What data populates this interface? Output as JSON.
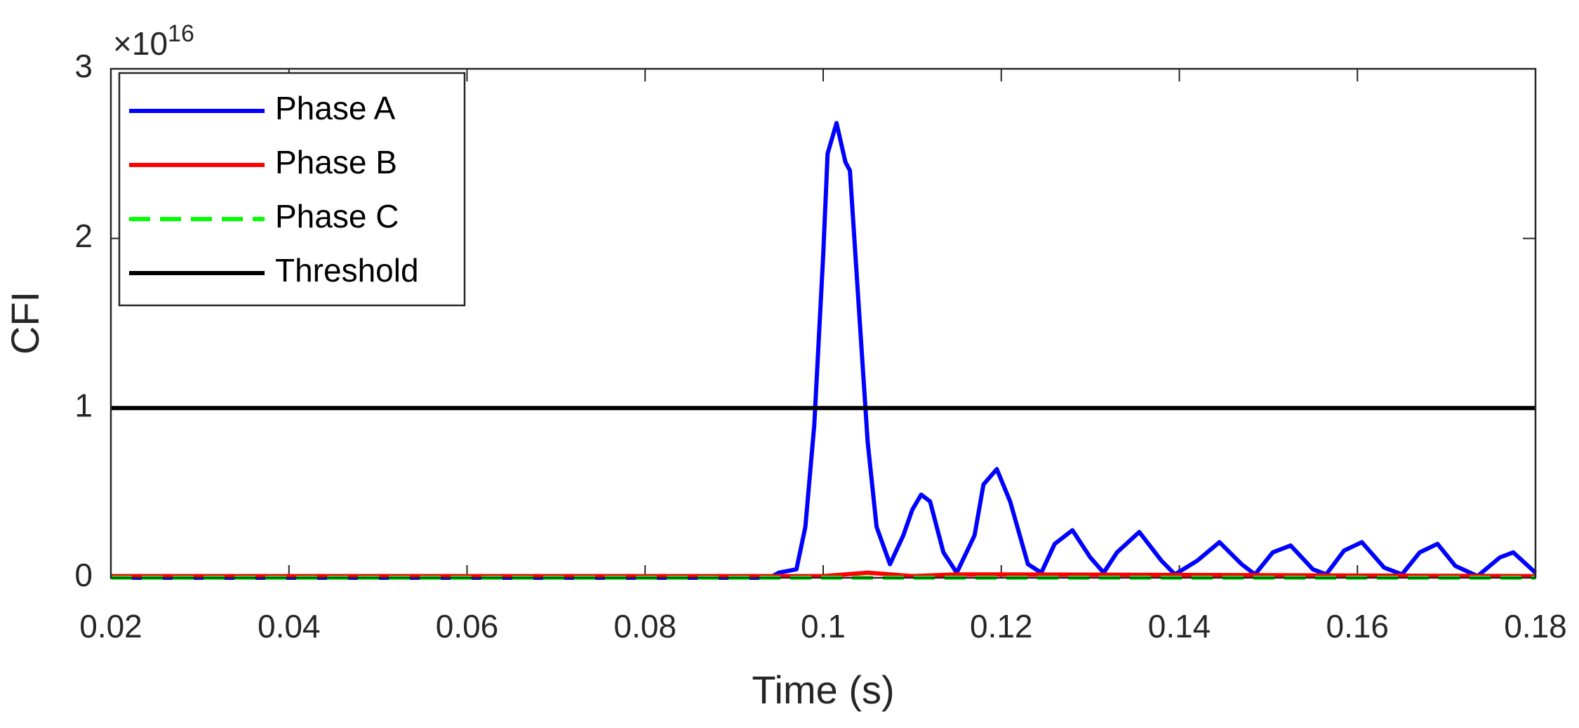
{
  "chart_data": {
    "type": "line",
    "x_label": "Time (s)",
    "y_label": "CFI",
    "y_multiplier": {
      "base": "×10",
      "exponent": "16"
    },
    "xlim": [
      0.02,
      0.18
    ],
    "xticks": [
      0.02,
      0.04,
      0.06,
      0.08,
      0.1,
      0.12,
      0.14,
      0.16,
      0.18
    ],
    "ylim": [
      0,
      3
    ],
    "yticks": [
      0,
      1,
      2,
      3
    ],
    "legend": "upper left",
    "series": [
      {
        "name": "Phase A",
        "color": "#0000ff",
        "style": "solid",
        "x": [
          0.02,
          0.094,
          0.095,
          0.097,
          0.098,
          0.099,
          0.1,
          0.1005,
          0.1015,
          0.1025,
          0.103,
          0.104,
          0.105,
          0.106,
          0.1075,
          0.109,
          0.11,
          0.111,
          0.112,
          0.1135,
          0.115,
          0.117,
          0.118,
          0.1195,
          0.121,
          0.123,
          0.1245,
          0.126,
          0.128,
          0.13,
          0.1315,
          0.133,
          0.1355,
          0.138,
          0.1395,
          0.142,
          0.1445,
          0.147,
          0.1485,
          0.1505,
          0.1525,
          0.155,
          0.1565,
          0.1585,
          0.1605,
          0.163,
          0.165,
          0.167,
          0.169,
          0.171,
          0.1735,
          0.176,
          0.1775,
          0.18
        ],
        "values": [
          0,
          0,
          0.03,
          0.05,
          0.3,
          0.9,
          1.9,
          2.5,
          2.68,
          2.45,
          2.4,
          1.6,
          0.8,
          0.3,
          0.08,
          0.25,
          0.4,
          0.49,
          0.45,
          0.15,
          0.03,
          0.25,
          0.55,
          0.64,
          0.45,
          0.08,
          0.03,
          0.2,
          0.28,
          0.12,
          0.03,
          0.15,
          0.27,
          0.1,
          0.02,
          0.1,
          0.21,
          0.08,
          0.02,
          0.15,
          0.19,
          0.05,
          0.02,
          0.16,
          0.21,
          0.06,
          0.02,
          0.15,
          0.2,
          0.07,
          0.01,
          0.12,
          0.15,
          0.03
        ]
      },
      {
        "name": "Phase B",
        "color": "#ff0000",
        "style": "solid",
        "x": [
          0.02,
          0.1,
          0.105,
          0.11,
          0.115,
          0.12,
          0.18
        ],
        "values": [
          0.01,
          0.01,
          0.03,
          0.01,
          0.02,
          0.02,
          0.01
        ]
      },
      {
        "name": "Phase C",
        "color": "#00ff00",
        "style": "dashed",
        "x": [
          0.02,
          0.18
        ],
        "values": [
          0,
          0
        ]
      },
      {
        "name": "Threshold",
        "color": "#000000",
        "style": "solid",
        "x": [
          0.02,
          0.18
        ],
        "values": [
          1,
          1
        ]
      }
    ]
  }
}
